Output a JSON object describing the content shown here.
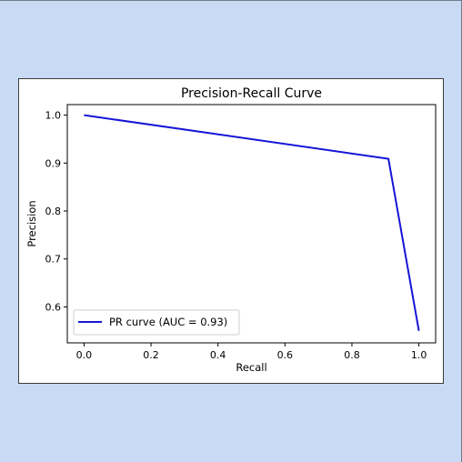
{
  "chart_data": {
    "type": "line",
    "title": "Precision-Recall Curve",
    "xlabel": "Recall",
    "ylabel": "Precision",
    "xlim": [
      -0.05,
      1.05
    ],
    "ylim": [
      0.525,
      1.022
    ],
    "xticks": [
      0.0,
      0.2,
      0.4,
      0.6,
      0.8,
      1.0
    ],
    "xtick_labels": [
      "0.0",
      "0.2",
      "0.4",
      "0.6",
      "0.8",
      "1.0"
    ],
    "yticks": [
      0.6,
      0.7,
      0.8,
      0.9,
      1.0
    ],
    "ytick_labels": [
      "0.6",
      "0.7",
      "0.8",
      "0.9",
      "1.0"
    ],
    "grid": false,
    "legend_position": "lower-left",
    "series": [
      {
        "name": "PR curve (AUC = 0.93)",
        "color": "#1515d6",
        "x": [
          0.0,
          0.909,
          1.0
        ],
        "y": [
          1.0,
          0.909,
          0.55
        ]
      }
    ]
  }
}
